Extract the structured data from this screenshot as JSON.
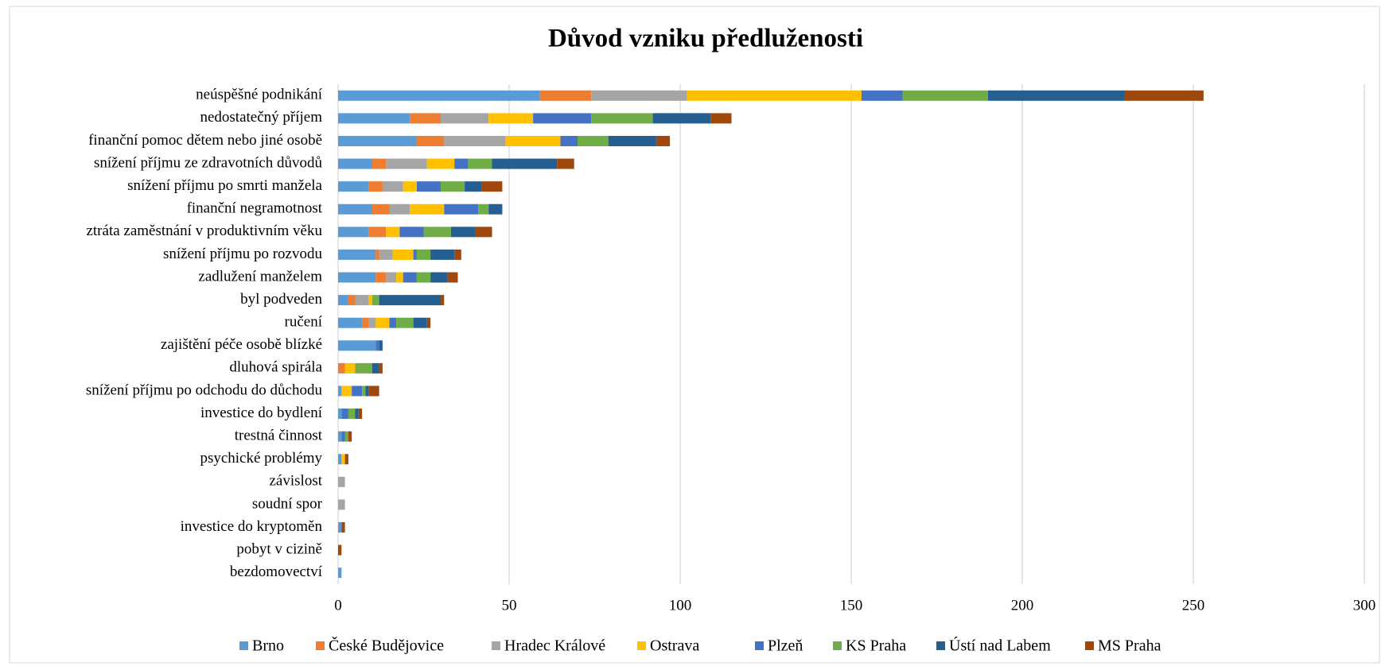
{
  "chart_data": {
    "type": "stacked_bar_horizontal",
    "title": "Důvod vzniku předluženosti",
    "categories": [
      "neúspěšné podnikání",
      "nedostatečný příjem",
      "finanční pomoc dětem nebo jiné osobě",
      "snížení příjmu ze zdravotních důvodů",
      "snížení příjmu po smrti manžela",
      "finanční negramotnost",
      "ztráta zaměstnání v produktivním věku",
      "snížení příjmu po rozvodu",
      "zadlužení manželem",
      "byl podveden",
      "ručení",
      "zajištění péče osobě blízké",
      "dluhová spirála",
      "snížení příjmu po odchodu do důchodu",
      "investice do bydlení",
      "trestná činnost",
      "psychické problémy",
      "závislost",
      "soudní spor",
      "investice do kryptoměn",
      "pobyt v cizině",
      "bezdomovectví"
    ],
    "series": [
      {
        "name": "Brno",
        "color": "#5b9bd5",
        "values": [
          59,
          21,
          23,
          10,
          9,
          10,
          9,
          11,
          11,
          3,
          7,
          11,
          0,
          1,
          1,
          1,
          1,
          0,
          0,
          1,
          0,
          1
        ]
      },
      {
        "name": "České Budějovice",
        "color": "#ed7d31",
        "values": [
          15,
          9,
          8,
          4,
          4,
          5,
          5,
          1,
          3,
          2,
          2,
          0,
          2,
          0,
          0,
          0,
          0,
          0,
          0,
          0,
          0,
          0
        ]
      },
      {
        "name": "Hradec Králové",
        "color": "#a5a5a5",
        "values": [
          28,
          14,
          18,
          12,
          6,
          6,
          0,
          4,
          3,
          4,
          2,
          0,
          0,
          0,
          0,
          0,
          0,
          2,
          2,
          0,
          0,
          0
        ]
      },
      {
        "name": "Ostrava",
        "color": "#ffc000",
        "values": [
          51,
          13,
          16,
          8,
          4,
          10,
          4,
          6,
          2,
          1,
          4,
          0,
          3,
          3,
          0,
          0,
          1,
          0,
          0,
          0,
          0,
          0
        ]
      },
      {
        "name": "Plzeň",
        "color": "#4472c4",
        "values": [
          12,
          17,
          5,
          4,
          7,
          10,
          7,
          1,
          4,
          0,
          2,
          1,
          0,
          3,
          2,
          1,
          0,
          0,
          0,
          0,
          0,
          0
        ]
      },
      {
        "name": "KS Praha",
        "color": "#70ad47",
        "values": [
          25,
          18,
          9,
          7,
          7,
          3,
          8,
          4,
          4,
          2,
          5,
          0,
          5,
          1,
          2,
          1,
          0,
          0,
          0,
          0,
          0,
          0
        ]
      },
      {
        "name": "Ústí nad Labem",
        "color": "#255e91",
        "values": [
          40,
          17,
          14,
          19,
          5,
          4,
          7,
          7,
          5,
          18,
          4,
          1,
          2,
          1,
          1,
          0,
          0,
          0,
          0,
          0,
          0,
          0
        ]
      },
      {
        "name": "MS Praha",
        "color": "#9e480e",
        "values": [
          23,
          6,
          4,
          5,
          6,
          0,
          5,
          2,
          3,
          1,
          1,
          0,
          1,
          3,
          1,
          1,
          1,
          0,
          0,
          1,
          1,
          0
        ]
      }
    ],
    "xlim": [
      0,
      300
    ],
    "xticks": [
      0,
      50,
      100,
      150,
      200,
      250,
      300
    ],
    "grid": true,
    "legend": "bottom"
  }
}
